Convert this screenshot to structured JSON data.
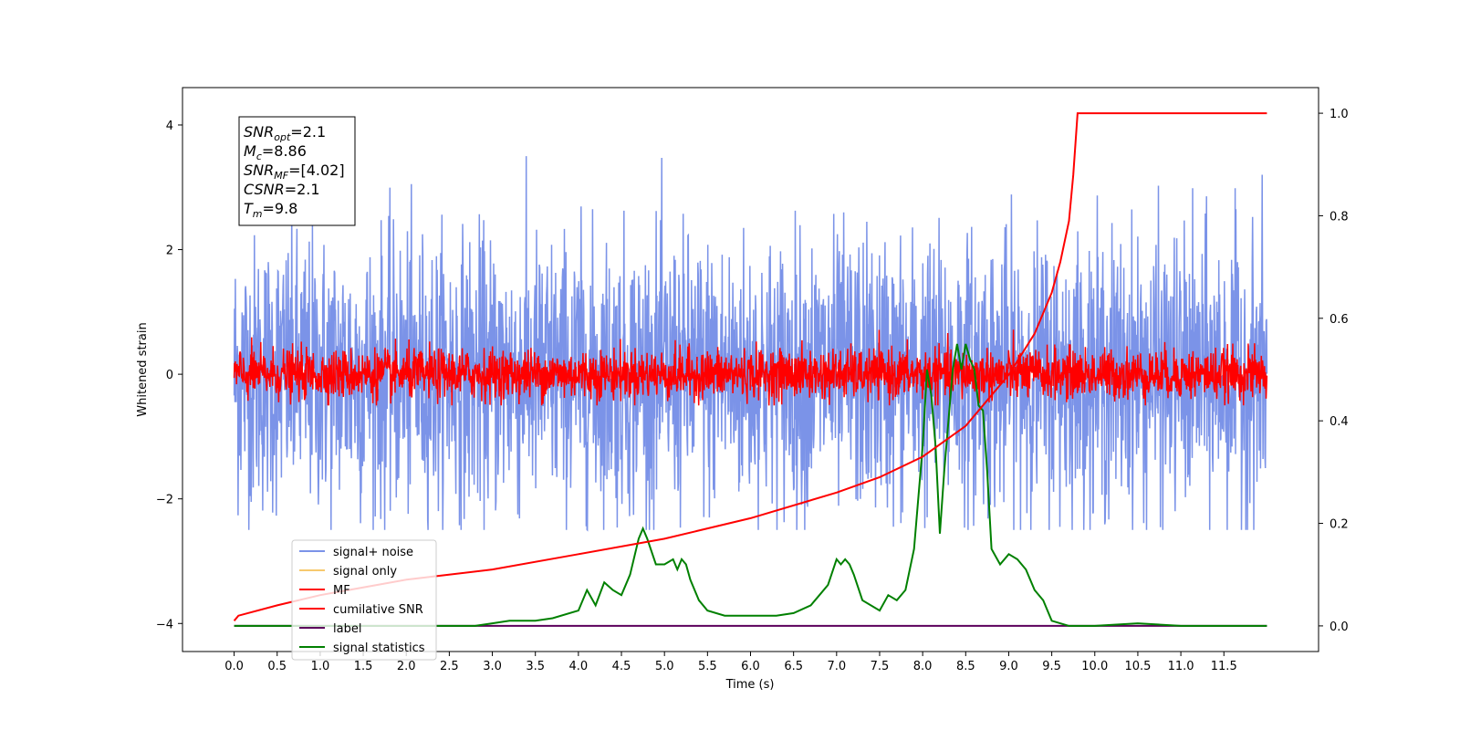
{
  "chart_data": {
    "type": "line",
    "xlabel": "Time (s)",
    "ylabel": "Whitened strain",
    "xlim": [
      -0.6,
      12.6
    ],
    "ylim": [
      -4.45,
      4.6
    ],
    "y2lim": [
      -0.05,
      1.05
    ],
    "x_ticks": [
      "0.0",
      "0.5",
      "1.0",
      "1.5",
      "2.0",
      "2.5",
      "3.0",
      "3.5",
      "4.0",
      "4.5",
      "5.0",
      "5.5",
      "6.0",
      "6.5",
      "7.0",
      "7.5",
      "8.0",
      "8.5",
      "9.0",
      "9.5",
      "10.0",
      "10.5",
      "11.0",
      "11.5"
    ],
    "y_ticks": [
      "4",
      "2",
      "0",
      "−2",
      "−4"
    ],
    "y_tick_values": [
      4,
      2,
      0,
      -2,
      -4
    ],
    "y2_ticks": [
      "1.0",
      "0.8",
      "0.6",
      "0.4",
      "0.2",
      "0.0"
    ],
    "y2_tick_values": [
      1.0,
      0.8,
      0.6,
      0.4,
      0.2,
      0.0
    ],
    "annotation": {
      "lines": [
        {
          "base": "SNR",
          "sub": "opt",
          "rest": "=2.1"
        },
        {
          "base": "M",
          "sub": "c",
          "rest": "=8.86"
        },
        {
          "base": "SNR",
          "sub": "MF",
          "rest": "=[4.02]"
        },
        {
          "base": "CSNR",
          "sub": "",
          "rest": "=2.1"
        },
        {
          "base": "T",
          "sub": "m",
          "rest": "=9.8"
        }
      ]
    },
    "legend_position": "lower-left",
    "series": [
      {
        "name": "signal+ noise",
        "color": "#7b93e8",
        "axis": "left",
        "kind": "noise",
        "x_range": [
          0.0,
          12.0
        ],
        "envelope": {
          "low": -2.5,
          "high": 3.5,
          "typical_std": 1.1
        }
      },
      {
        "name": "signal only",
        "color": "#f7c96e",
        "axis": "left",
        "kind": "hidden"
      },
      {
        "name": "MF",
        "color": "#ff0000",
        "axis": "left",
        "kind": "noise",
        "x_range": [
          0.0,
          12.0
        ],
        "envelope": {
          "low": -0.5,
          "high": 0.95,
          "typical_std": 0.2
        }
      },
      {
        "name": "cumilative SNR",
        "color": "#ff0000",
        "axis": "right",
        "kind": "line",
        "x": [
          0.0,
          0.05,
          0.5,
          1.0,
          2.0,
          3.0,
          4.0,
          5.0,
          6.0,
          7.0,
          7.5,
          8.0,
          8.5,
          9.0,
          9.3,
          9.5,
          9.6,
          9.7,
          9.75,
          9.8,
          10.5,
          11.0,
          11.5,
          12.0
        ],
        "values": [
          0.01,
          0.02,
          0.04,
          0.06,
          0.09,
          0.11,
          0.14,
          0.17,
          0.21,
          0.26,
          0.29,
          0.33,
          0.39,
          0.49,
          0.57,
          0.65,
          0.71,
          0.79,
          0.88,
          1.0,
          1.0,
          1.0,
          1.0,
          1.0
        ]
      },
      {
        "name": "label",
        "color": "#5b005b",
        "axis": "right",
        "kind": "line",
        "x": [
          0.0,
          12.0
        ],
        "values": [
          0.0,
          0.0
        ]
      },
      {
        "name": "signal statistics",
        "color": "#008000",
        "axis": "right",
        "kind": "line",
        "x": [
          0.0,
          0.5,
          1.0,
          1.5,
          2.0,
          2.5,
          2.8,
          3.0,
          3.2,
          3.5,
          3.7,
          4.0,
          4.1,
          4.2,
          4.3,
          4.4,
          4.5,
          4.6,
          4.7,
          4.75,
          4.8,
          4.9,
          5.0,
          5.1,
          5.15,
          5.2,
          5.25,
          5.3,
          5.4,
          5.5,
          5.7,
          6.0,
          6.3,
          6.5,
          6.7,
          6.8,
          6.9,
          7.0,
          7.05,
          7.1,
          7.15,
          7.2,
          7.3,
          7.5,
          7.6,
          7.7,
          7.8,
          7.9,
          8.0,
          8.05,
          8.1,
          8.15,
          8.2,
          8.25,
          8.3,
          8.35,
          8.4,
          8.45,
          8.5,
          8.55,
          8.6,
          8.65,
          8.7,
          8.75,
          8.8,
          8.9,
          9.0,
          9.1,
          9.2,
          9.3,
          9.4,
          9.5,
          9.7,
          10.0,
          10.5,
          11.0,
          11.5,
          12.0
        ],
        "values": [
          0.0,
          0.0,
          0.0,
          0.0,
          0.0,
          0.0,
          0.0,
          0.005,
          0.01,
          0.01,
          0.015,
          0.03,
          0.07,
          0.04,
          0.085,
          0.07,
          0.06,
          0.1,
          0.17,
          0.19,
          0.17,
          0.12,
          0.12,
          0.13,
          0.11,
          0.13,
          0.12,
          0.09,
          0.05,
          0.03,
          0.02,
          0.02,
          0.02,
          0.025,
          0.04,
          0.06,
          0.08,
          0.13,
          0.12,
          0.13,
          0.12,
          0.1,
          0.05,
          0.03,
          0.06,
          0.05,
          0.07,
          0.15,
          0.35,
          0.5,
          0.45,
          0.35,
          0.18,
          0.3,
          0.4,
          0.5,
          0.55,
          0.5,
          0.55,
          0.52,
          0.5,
          0.43,
          0.42,
          0.3,
          0.15,
          0.12,
          0.14,
          0.13,
          0.11,
          0.07,
          0.05,
          0.01,
          0.0,
          0.0,
          0.005,
          0.0,
          0.0,
          0.0
        ]
      }
    ]
  }
}
